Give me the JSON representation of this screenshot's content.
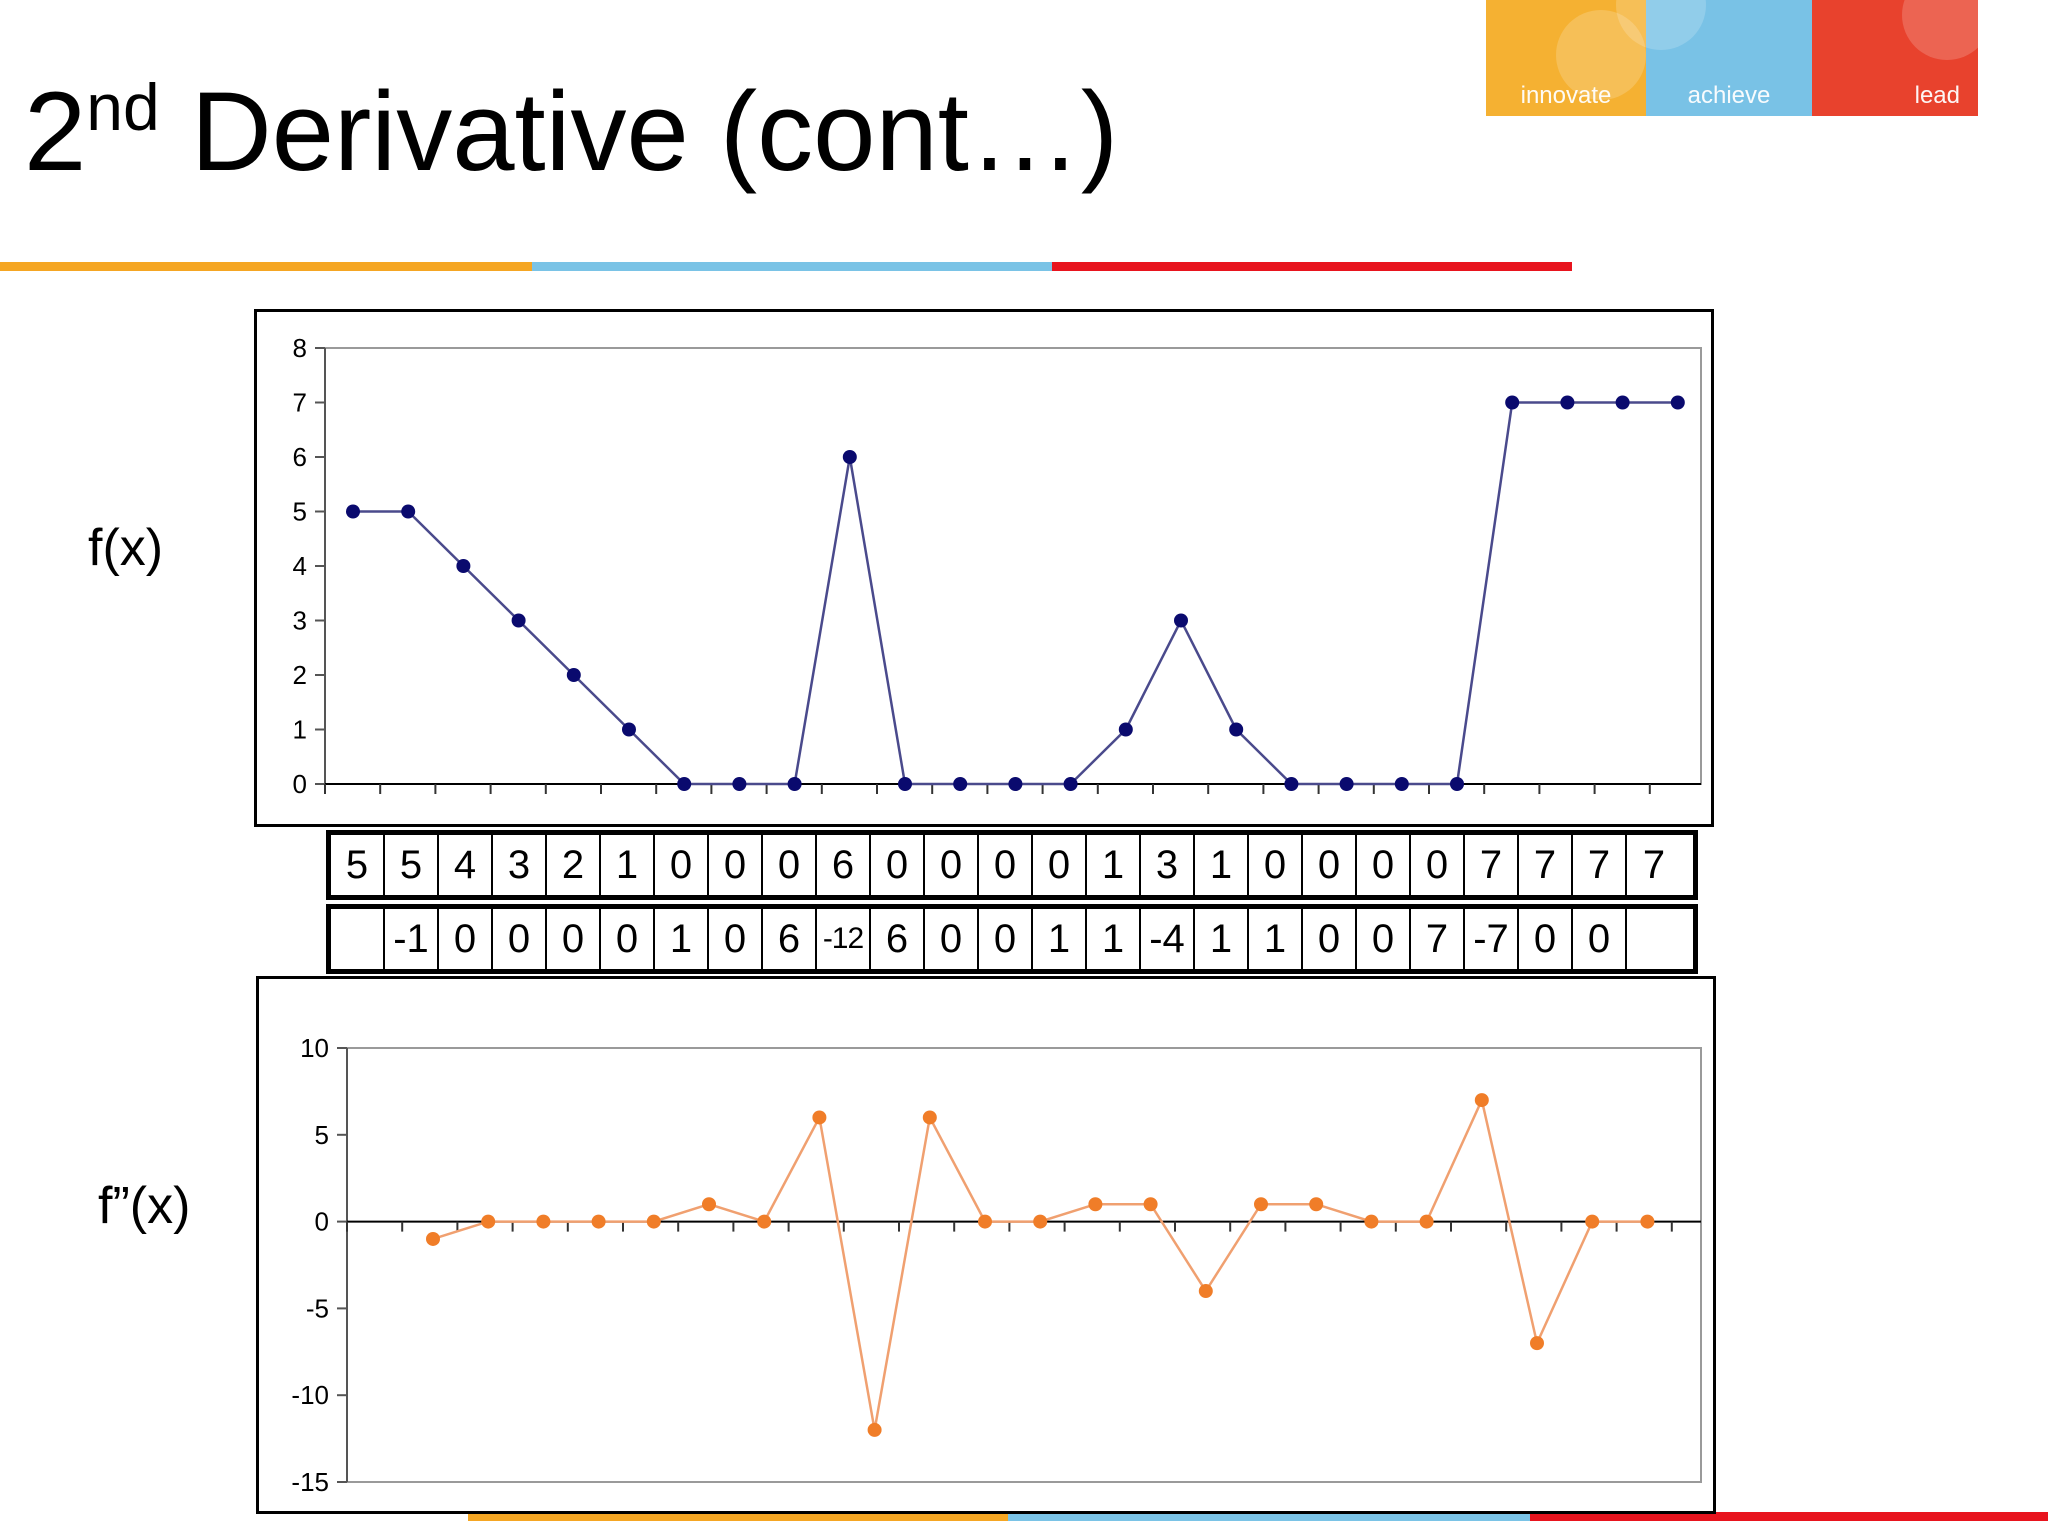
{
  "logo": {
    "words": [
      "innovate",
      "achieve",
      "lead"
    ],
    "colors": [
      "#f5b132",
      "#79c2e6",
      "#e8422d"
    ]
  },
  "title": {
    "base": "2",
    "superscript": "nd",
    "rest": " Derivative (cont…)"
  },
  "accent_colors": {
    "orange": "#f5a623",
    "blue": "#7ac3e6",
    "red": "#e8141e"
  },
  "labels": {
    "fx": "f(x)",
    "f2x": "f”(x)"
  },
  "table": {
    "fx_row": [
      "5",
      "5",
      "4",
      "3",
      "2",
      "1",
      "0",
      "0",
      "0",
      "6",
      "0",
      "0",
      "0",
      "0",
      "1",
      "3",
      "1",
      "0",
      "0",
      "0",
      "0",
      "7",
      "7",
      "7",
      "7"
    ],
    "f2_row": [
      "",
      "-1",
      "0",
      "0",
      "0",
      "0",
      "1",
      "0",
      "6",
      "-12",
      "6",
      "0",
      "0",
      "1",
      "1",
      "-4",
      "1",
      "1",
      "0",
      "0",
      "7",
      "-7",
      "0",
      "0",
      ""
    ]
  },
  "chart_data": [
    {
      "type": "line",
      "x": [
        1,
        2,
        3,
        4,
        5,
        6,
        7,
        8,
        9,
        10,
        11,
        12,
        13,
        14,
        15,
        16,
        17,
        18,
        19,
        20,
        21,
        22,
        23,
        24,
        25
      ],
      "values": [
        5,
        5,
        4,
        3,
        2,
        1,
        0,
        0,
        0,
        6,
        0,
        0,
        0,
        0,
        1,
        3,
        1,
        0,
        0,
        0,
        0,
        7,
        7,
        7,
        7
      ],
      "ylim": [
        0,
        8
      ],
      "yticks": [
        "0",
        "1",
        "2",
        "3",
        "4",
        "5",
        "6",
        "7",
        "8"
      ],
      "color": "#0a0a6e",
      "line_color": "#4a4a8c",
      "grid": false
    },
    {
      "type": "line",
      "x": [
        2,
        3,
        4,
        5,
        6,
        7,
        8,
        9,
        10,
        11,
        12,
        13,
        14,
        15,
        16,
        17,
        18,
        19,
        20,
        21,
        22,
        23,
        24
      ],
      "values": [
        -1,
        0,
        0,
        0,
        0,
        1,
        0,
        6,
        -12,
        6,
        0,
        0,
        1,
        1,
        -4,
        1,
        1,
        0,
        0,
        7,
        -7,
        0,
        0
      ],
      "ylim": [
        -15,
        10
      ],
      "yticks": [
        "-15",
        "-10",
        "-5",
        "0",
        "5",
        "10"
      ],
      "color": "#f07d28",
      "line_color": "#f0a070",
      "grid": false
    }
  ]
}
